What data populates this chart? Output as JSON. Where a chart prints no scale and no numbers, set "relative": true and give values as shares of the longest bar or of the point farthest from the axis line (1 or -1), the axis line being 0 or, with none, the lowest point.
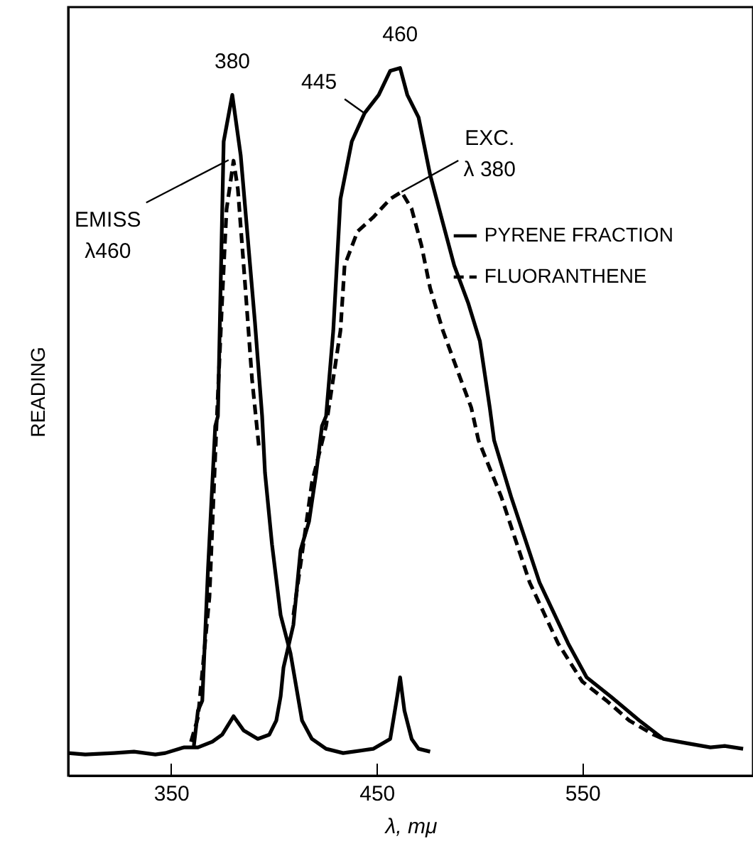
{
  "chart_data": {
    "type": "line",
    "xlabel": "λ,  mμ",
    "ylabel": "READING",
    "relative": true,
    "xlim": [
      300,
      633
    ],
    "xticks": [
      350,
      450,
      550
    ],
    "grid": false,
    "legend": "right",
    "marker": "none",
    "series": [
      {
        "name": "PYRENE FRACTION",
        "color": "#000000",
        "line_style": "solid",
        "x": [
          300,
          308.3,
          322.2,
          332.0,
          342.4,
          347.2,
          356.2,
          363.1,
          370.1,
          374.9,
          380.4,
          385.3,
          392.2,
          397.8,
          401.2,
          403.3,
          404.7,
          409.5,
          413.0,
          417.1,
          420.6,
          423.4,
          425.4,
          428.9,
          432.4,
          437.9,
          444.1,
          451.0,
          456.6,
          461.4,
          464.9,
          470.4,
          476.0,
          482.2,
          487.7,
          494.6,
          500.2,
          505.0,
          507.1,
          515.4,
          529.2,
          543.1,
          552.1,
          563.8,
          577.7,
          589.4,
          600.5,
          612.3,
          619.2,
          628.2
        ],
        "values": [
          0.032,
          0.03,
          0.032,
          0.034,
          0.03,
          0.032,
          0.04,
          0.04,
          0.048,
          0.058,
          0.084,
          0.064,
          0.052,
          0.058,
          0.078,
          0.112,
          0.153,
          0.213,
          0.319,
          0.359,
          0.428,
          0.494,
          0.508,
          0.629,
          0.815,
          0.896,
          0.936,
          0.962,
          0.996,
          1.0,
          0.962,
          0.93,
          0.849,
          0.781,
          0.721,
          0.667,
          0.614,
          0.52,
          0.474,
          0.394,
          0.273,
          0.187,
          0.139,
          0.112,
          0.078,
          0.052,
          0.046,
          0.04,
          0.042,
          0.038
        ]
      },
      {
        "color": "#000000",
        "line_style": "solid",
        "x": [
          361.1,
          363.1,
          365.2,
          368.0,
          371.5,
          372.8,
          375.6,
          379.8,
          383.9,
          390.8,
          394.3,
          395.7,
          399.1,
          403.3,
          408.1,
          413.7,
          418.5,
          425.4,
          433.7,
          448.3,
          456.6,
          460.0,
          461.4,
          463.5,
          467.0,
          470.4,
          476.0
        ],
        "values": [
          0.042,
          0.092,
          0.106,
          0.293,
          0.494,
          0.508,
          0.896,
          0.962,
          0.876,
          0.641,
          0.508,
          0.428,
          0.327,
          0.227,
          0.173,
          0.078,
          0.052,
          0.038,
          0.032,
          0.038,
          0.052,
          0.112,
          0.139,
          0.092,
          0.052,
          0.038,
          0.034
        ]
      },
      {
        "name": "FLUORANTHENE",
        "color": "#000000",
        "line_style": "dashed",
        "x": [
          409.5,
          413.7,
          418.5,
          425.4,
          432.4,
          434.4,
          440.7,
          448.3,
          456.6,
          462.1,
          467.0,
          471.8,
          476.0,
          482.2,
          489.1,
          496.0,
          499.5,
          510.6,
          524.4,
          538.2,
          550.0,
          561.8,
          572.8,
          584.6,
          589.4
        ],
        "values": [
          0.227,
          0.313,
          0.414,
          0.494,
          0.629,
          0.721,
          0.769,
          0.789,
          0.815,
          0.825,
          0.801,
          0.749,
          0.689,
          0.629,
          0.574,
          0.52,
          0.474,
          0.394,
          0.273,
          0.187,
          0.133,
          0.106,
          0.078,
          0.058,
          0.052
        ]
      },
      {
        "color": "#000000",
        "line_style": "dashed",
        "x": [
          359.7,
          363.1,
          368.7,
          372.1,
          375.0,
          377.0,
          380.4,
          382.5,
          386.0,
          389.4,
          392.9
        ],
        "values": [
          0.048,
          0.082,
          0.253,
          0.494,
          0.68,
          0.8,
          0.869,
          0.829,
          0.695,
          0.56,
          0.46
        ]
      }
    ],
    "annotations": [
      {
        "text": "380",
        "x": 379.8,
        "y": 0.962
      },
      {
        "text": "460",
        "x": 461.4,
        "y": 1.0
      },
      {
        "text": "445",
        "x": 444.1,
        "y": 0.936
      },
      {
        "text": "EMISS\nλ460",
        "x": 378,
        "y": 0.87
      },
      {
        "text": "EXC.\nλ 380",
        "x": 462.1,
        "y": 0.825
      }
    ]
  }
}
